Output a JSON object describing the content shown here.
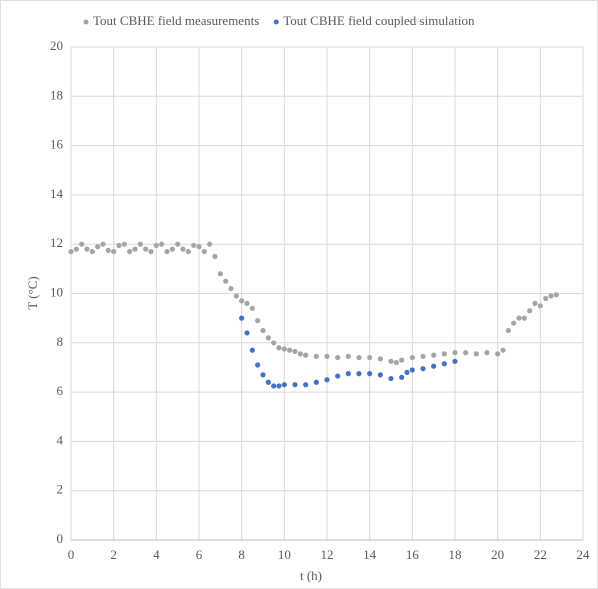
{
  "chart_data": {
    "type": "scatter",
    "xlabel": "t (h)",
    "ylabel": "T (°C)",
    "xlim": [
      0,
      24
    ],
    "xticks": [
      0,
      2,
      4,
      6,
      8,
      10,
      12,
      14,
      16,
      18,
      20,
      22,
      24
    ],
    "ylim": [
      0,
      20
    ],
    "yticks": [
      0,
      2,
      4,
      6,
      8,
      10,
      12,
      14,
      16,
      18,
      20
    ],
    "grid": true,
    "legend": "top",
    "series": [
      {
        "name": "Tout CBHE field measurements",
        "color": "#a5a5a5",
        "x": [
          0,
          0.25,
          0.5,
          0.75,
          1,
          1.25,
          1.5,
          1.75,
          2,
          2.25,
          2.5,
          2.75,
          3,
          3.25,
          3.5,
          3.75,
          4,
          4.25,
          4.5,
          4.75,
          5,
          5.25,
          5.5,
          5.75,
          6,
          6.25,
          6.5,
          6.75,
          7,
          7.25,
          7.5,
          7.75,
          8,
          8.25,
          8.5,
          8.75,
          9,
          9.25,
          9.5,
          9.75,
          10,
          10.25,
          10.5,
          10.75,
          11,
          11.5,
          12,
          12.5,
          13,
          13.5,
          14,
          14.5,
          15,
          15.25,
          15.5,
          16,
          16.5,
          17,
          17.5,
          18,
          18.5,
          19,
          19.5,
          20,
          20.25,
          20.5,
          20.75,
          21,
          21.25,
          21.5,
          21.75,
          22,
          22.25,
          22.5,
          22.75
        ],
        "values": [
          11.7,
          11.8,
          12.0,
          11.8,
          11.7,
          11.9,
          12.0,
          11.75,
          11.7,
          11.95,
          12.0,
          11.7,
          11.8,
          12.0,
          11.8,
          11.7,
          11.95,
          12.0,
          11.7,
          11.8,
          12.0,
          11.8,
          11.7,
          11.95,
          11.9,
          11.7,
          12.0,
          11.5,
          10.8,
          10.5,
          10.2,
          9.9,
          9.7,
          9.6,
          9.4,
          8.9,
          8.5,
          8.2,
          8.0,
          7.8,
          7.75,
          7.7,
          7.65,
          7.55,
          7.5,
          7.45,
          7.45,
          7.4,
          7.45,
          7.4,
          7.4,
          7.35,
          7.25,
          7.2,
          7.3,
          7.4,
          7.45,
          7.5,
          7.55,
          7.6,
          7.6,
          7.55,
          7.6,
          7.55,
          7.7,
          8.5,
          8.8,
          9.0,
          9.0,
          9.3,
          9.6,
          9.5,
          9.8,
          9.9,
          9.95
        ]
      },
      {
        "name": "Tout CBHE field coupled simulation",
        "color": "#4472c4",
        "x": [
          8,
          8.25,
          8.5,
          8.75,
          9,
          9.25,
          9.5,
          9.75,
          10,
          10.5,
          11,
          11.5,
          12,
          12.5,
          13,
          13.5,
          14,
          14.5,
          15,
          15.5,
          15.75,
          16,
          16.5,
          17,
          17.5,
          18
        ],
        "values": [
          9.0,
          8.4,
          7.7,
          7.1,
          6.7,
          6.4,
          6.25,
          6.25,
          6.3,
          6.3,
          6.3,
          6.4,
          6.5,
          6.65,
          6.75,
          6.75,
          6.75,
          6.7,
          6.55,
          6.6,
          6.8,
          6.9,
          6.95,
          7.05,
          7.15,
          7.25
        ]
      }
    ]
  }
}
